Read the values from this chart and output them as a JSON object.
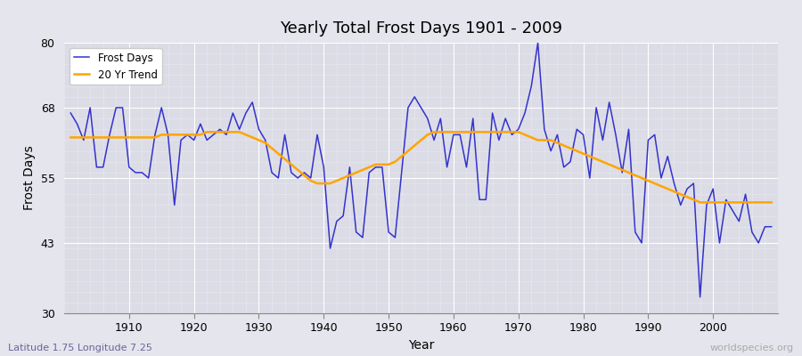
{
  "title": "Yearly Total Frost Days 1901 - 2009",
  "xlabel": "Year",
  "ylabel": "Frost Days",
  "subtitle_left": "Latitude 1.75 Longitude 7.25",
  "subtitle_right": "worldspecies.org",
  "ylim": [
    30,
    80
  ],
  "yticks": [
    30,
    43,
    55,
    68,
    80
  ],
  "line_color": "#3333cc",
  "trend_color": "#FFA500",
  "bg_color": "#e5e5ed",
  "plot_bg_color": "#dcdce6",
  "grid_major_color": "#ffffff",
  "grid_minor_color": "#ffffff",
  "frost_days": {
    "1901": 67,
    "1902": 65,
    "1903": 62,
    "1904": 68,
    "1905": 57,
    "1906": 57,
    "1907": 63,
    "1908": 68,
    "1909": 68,
    "1910": 57,
    "1911": 56,
    "1912": 56,
    "1913": 55,
    "1914": 63,
    "1915": 68,
    "1916": 63,
    "1917": 50,
    "1918": 62,
    "1919": 63,
    "1920": 62,
    "1921": 65,
    "1922": 62,
    "1923": 63,
    "1924": 64,
    "1925": 63,
    "1926": 67,
    "1927": 64,
    "1928": 67,
    "1929": 69,
    "1930": 64,
    "1931": 62,
    "1932": 56,
    "1933": 55,
    "1934": 63,
    "1935": 56,
    "1936": 55,
    "1937": 56,
    "1938": 55,
    "1939": 63,
    "1940": 57,
    "1941": 42,
    "1942": 47,
    "1943": 48,
    "1944": 57,
    "1945": 45,
    "1946": 44,
    "1947": 56,
    "1948": 57,
    "1949": 57,
    "1950": 45,
    "1951": 44,
    "1952": 56,
    "1953": 68,
    "1954": 70,
    "1955": 68,
    "1956": 66,
    "1957": 62,
    "1958": 66,
    "1959": 57,
    "1960": 63,
    "1961": 63,
    "1962": 57,
    "1963": 66,
    "1964": 51,
    "1965": 51,
    "1966": 67,
    "1967": 62,
    "1968": 66,
    "1969": 63,
    "1970": 64,
    "1971": 67,
    "1972": 72,
    "1973": 80,
    "1974": 64,
    "1975": 60,
    "1976": 63,
    "1977": 57,
    "1978": 58,
    "1979": 64,
    "1980": 63,
    "1981": 55,
    "1982": 68,
    "1983": 62,
    "1984": 69,
    "1985": 63,
    "1986": 56,
    "1987": 64,
    "1988": 45,
    "1989": 43,
    "1990": 62,
    "1991": 63,
    "1992": 55,
    "1993": 59,
    "1994": 54,
    "1995": 50,
    "1996": 53,
    "1997": 54,
    "1998": 33,
    "1999": 50,
    "2000": 53,
    "2001": 43,
    "2002": 51,
    "2003": 49,
    "2004": 47,
    "2005": 52,
    "2006": 45,
    "2007": 43,
    "2008": 46,
    "2009": 46
  },
  "trend_20yr": {
    "1901": 62.5,
    "1902": 62.5,
    "1903": 62.5,
    "1904": 62.5,
    "1905": 62.5,
    "1906": 62.5,
    "1907": 62.5,
    "1908": 62.5,
    "1909": 62.5,
    "1910": 62.5,
    "1911": 62.5,
    "1912": 62.5,
    "1913": 62.5,
    "1914": 62.5,
    "1915": 63.0,
    "1916": 63.0,
    "1917": 63.0,
    "1918": 63.0,
    "1919": 63.0,
    "1920": 63.0,
    "1921": 63.0,
    "1922": 63.5,
    "1923": 63.5,
    "1924": 63.5,
    "1925": 63.5,
    "1926": 63.5,
    "1927": 63.5,
    "1928": 63.0,
    "1929": 62.5,
    "1930": 62.0,
    "1931": 61.5,
    "1932": 60.5,
    "1933": 59.5,
    "1934": 58.5,
    "1935": 57.5,
    "1936": 56.5,
    "1937": 55.5,
    "1938": 54.5,
    "1939": 54.0,
    "1940": 54.0,
    "1941": 54.0,
    "1942": 54.5,
    "1943": 55.0,
    "1944": 55.5,
    "1945": 56.0,
    "1946": 56.5,
    "1947": 57.0,
    "1948": 57.5,
    "1949": 57.5,
    "1950": 57.5,
    "1951": 58.0,
    "1952": 59.0,
    "1953": 60.0,
    "1954": 61.0,
    "1955": 62.0,
    "1956": 63.0,
    "1957": 63.5,
    "1958": 63.5,
    "1959": 63.5,
    "1960": 63.5,
    "1961": 63.5,
    "1962": 63.5,
    "1963": 63.5,
    "1964": 63.5,
    "1965": 63.5,
    "1966": 63.5,
    "1967": 63.5,
    "1968": 63.5,
    "1969": 63.5,
    "1970": 63.5,
    "1971": 63.0,
    "1972": 62.5,
    "1973": 62.0,
    "1974": 62.0,
    "1975": 62.0,
    "1976": 61.5,
    "1977": 61.0,
    "1978": 60.5,
    "1979": 60.0,
    "1980": 59.5,
    "1981": 59.0,
    "1982": 58.5,
    "1983": 58.0,
    "1984": 57.5,
    "1985": 57.0,
    "1986": 56.5,
    "1987": 56.0,
    "1988": 55.5,
    "1989": 55.0,
    "1990": 54.5,
    "1991": 54.0,
    "1992": 53.5,
    "1993": 53.0,
    "1994": 52.5,
    "1995": 52.0,
    "1996": 51.5,
    "1997": 51.0,
    "1998": 50.5,
    "1999": 50.5,
    "2000": 50.5,
    "2001": 50.5,
    "2002": 50.5,
    "2003": 50.5,
    "2004": 50.5,
    "2005": 50.5,
    "2006": 50.5,
    "2007": 50.5,
    "2008": 50.5,
    "2009": 50.5
  }
}
